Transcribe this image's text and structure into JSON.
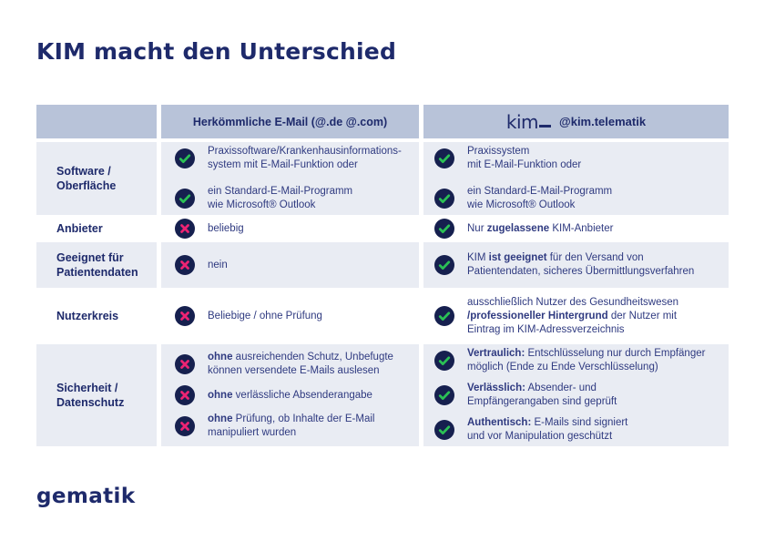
{
  "page": {
    "title": "KIM macht den Unterschied",
    "brand": "gematik"
  },
  "colors": {
    "navy": "#1e2a6b",
    "text": "#2f3a80",
    "header_bg": "#b8c3d9",
    "row_bg": "#e9ecf3",
    "icon_circle": "#16204f",
    "check_green": "#2bc155",
    "cross_pink": "#ed2373"
  },
  "table": {
    "columns": {
      "email": {
        "label": "Herkömmliche E-Mail (@.de @.com)"
      },
      "kim": {
        "logo": "kim",
        "label": "@kim.telematik"
      }
    },
    "rows": [
      {
        "label": [
          "Software /",
          "Oberfläche"
        ],
        "email": [
          {
            "icon": "check",
            "lines": [
              [
                {
                  "t": "Praxissoftware/Krankenhausinformations-"
                }
              ],
              [
                {
                  "t": "system mit E-Mail-Funktion oder"
                }
              ]
            ]
          },
          {
            "icon": "check",
            "lines": [
              [
                {
                  "t": "ein Standard-E-Mail-Programm"
                }
              ],
              [
                {
                  "t": "wie Microsoft® Outlook"
                }
              ]
            ]
          }
        ],
        "kim": [
          {
            "icon": "check",
            "lines": [
              [
                {
                  "t": "Praxissystem"
                }
              ],
              [
                {
                  "t": "mit E-Mail-Funktion oder"
                }
              ]
            ]
          },
          {
            "icon": "check",
            "lines": [
              [
                {
                  "t": "ein Standard-E-Mail-Programm"
                }
              ],
              [
                {
                  "t": "wie Microsoft® Outlook"
                }
              ]
            ]
          }
        ]
      },
      {
        "label": [
          "Anbieter"
        ],
        "email": [
          {
            "icon": "cross",
            "lines": [
              [
                {
                  "t": "beliebig"
                }
              ]
            ]
          }
        ],
        "kim": [
          {
            "icon": "check",
            "lines": [
              [
                {
                  "t": "Nur "
                },
                {
                  "t": "zugelassene",
                  "b": true
                },
                {
                  "t": " KIM-Anbieter"
                }
              ]
            ]
          }
        ]
      },
      {
        "label": [
          "Geeignet für",
          "Patientendaten"
        ],
        "email": [
          {
            "icon": "cross",
            "lines": [
              [
                {
                  "t": "nein"
                }
              ]
            ]
          }
        ],
        "kim": [
          {
            "icon": "check",
            "lines": [
              [
                {
                  "t": "KIM "
                },
                {
                  "t": "ist geeignet",
                  "b": true
                },
                {
                  "t": " für den Versand von"
                }
              ],
              [
                {
                  "t": "Patientendaten, sicheres Übermittlungsverfahren"
                }
              ]
            ]
          }
        ]
      },
      {
        "label": [
          "Nutzerkreis"
        ],
        "email": [
          {
            "icon": "cross",
            "lines": [
              [
                {
                  "t": "Beliebige / ohne Prüfung"
                }
              ]
            ]
          }
        ],
        "kim": [
          {
            "icon": "check",
            "lines": [
              [
                {
                  "t": "ausschließlich Nutzer des Gesundheitswesen"
                }
              ],
              [
                {
                  "t": "/professioneller Hintergrund",
                  "b": true
                },
                {
                  "t": " der Nutzer mit"
                }
              ],
              [
                {
                  "t": "Eintrag im KIM-Adressverzeichnis"
                }
              ]
            ]
          }
        ]
      },
      {
        "label": [
          "Sicherheit /",
          "Datenschutz"
        ],
        "email": [
          {
            "icon": "cross",
            "lines": [
              [
                {
                  "t": "ohne",
                  "b": true
                },
                {
                  "t": " ausreichenden Schutz, Unbefugte"
                }
              ],
              [
                {
                  "t": "können versendete E-Mails auslesen"
                }
              ]
            ]
          },
          {
            "icon": "cross",
            "lines": [
              [
                {
                  "t": "ohne",
                  "b": true
                },
                {
                  "t": " verlässliche Absenderangabe"
                }
              ]
            ]
          },
          {
            "icon": "cross",
            "lines": [
              [
                {
                  "t": "ohne",
                  "b": true
                },
                {
                  "t": " Prüfung, ob Inhalte der E-Mail"
                }
              ],
              [
                {
                  "t": "manipuliert wurden"
                }
              ]
            ]
          }
        ],
        "kim": [
          {
            "icon": "check",
            "lines": [
              [
                {
                  "t": "Vertraulich:",
                  "b": true
                },
                {
                  "t": " Entschlüsselung nur durch Empfänger"
                }
              ],
              [
                {
                  "t": "möglich (Ende zu Ende Verschlüsselung)"
                }
              ]
            ]
          },
          {
            "icon": "check",
            "lines": [
              [
                {
                  "t": "Verlässlich:",
                  "b": true
                },
                {
                  "t": " Absender- und"
                }
              ],
              [
                {
                  "t": "Empfängerangaben sind geprüft"
                }
              ]
            ]
          },
          {
            "icon": "check",
            "lines": [
              [
                {
                  "t": "Authentisch:",
                  "b": true
                },
                {
                  "t": " E-Mails sind signiert"
                }
              ],
              [
                {
                  "t": "und vor Manipulation geschützt"
                }
              ]
            ]
          }
        ]
      }
    ]
  }
}
